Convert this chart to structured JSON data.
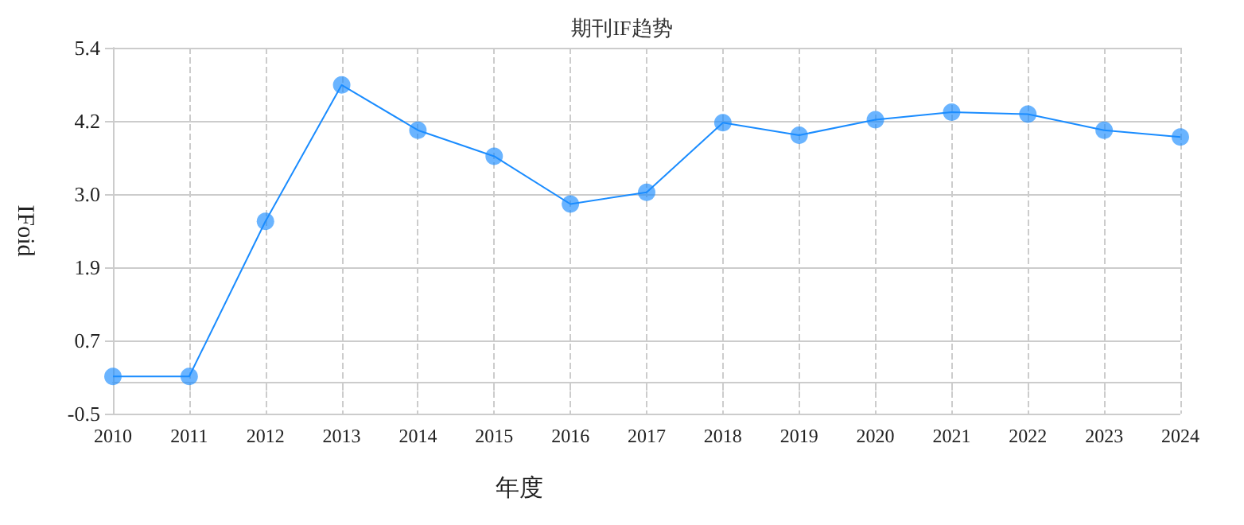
{
  "chart_data": {
    "type": "line",
    "title": "期刊IF趋势",
    "xlabel": "年度",
    "ylabel": "IFoid",
    "categories": [
      "2010",
      "2011",
      "2012",
      "2013",
      "2014",
      "2015",
      "2016",
      "2017",
      "2018",
      "2019",
      "2020",
      "2021",
      "2022",
      "2023",
      "2024"
    ],
    "series": [
      {
        "color": "#1a8cff",
        "values": [
          0.1,
          0.1,
          2.6,
          4.8,
          4.07,
          3.65,
          2.88,
          3.07,
          4.19,
          3.99,
          4.24,
          4.36,
          4.33,
          4.07,
          3.96
        ]
      }
    ],
    "ylim": [
      -0.5,
      5.4
    ],
    "yticks": [
      -0.5,
      {
        "value": 0.68,
        "label": "0.7"
      },
      {
        "value": 1.86,
        "label": "1.9"
      },
      {
        "value": 3.04,
        "label": "3.0"
      },
      {
        "value": 4.22,
        "label": "4.2"
      },
      5.4
    ],
    "grid": true,
    "marker": "circle",
    "line_style": "solid"
  }
}
